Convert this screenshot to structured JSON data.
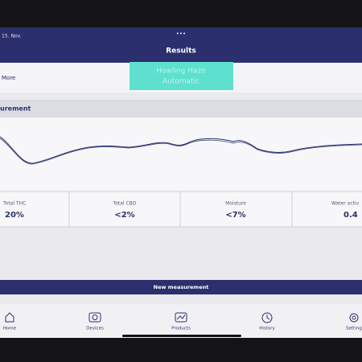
{
  "status_bar": {
    "date": "15. Nov.",
    "dots": "•••"
  },
  "header": {
    "title": "Results"
  },
  "toolbar": {
    "more": "More",
    "strain": {
      "name": "Howling Haze",
      "mode": "Automatic"
    }
  },
  "measurement": {
    "title": "urement"
  },
  "stats": [
    {
      "label": "Total THC",
      "value": "20%"
    },
    {
      "label": "Total CBD",
      "value": "<2%"
    },
    {
      "label": "Moisture",
      "value": "<7%"
    },
    {
      "label": "Water activ",
      "value": "0.4"
    }
  ],
  "button": {
    "label": "New measurement"
  },
  "nav": [
    "Home",
    "Devices",
    "Products",
    "History",
    "Setting"
  ]
}
